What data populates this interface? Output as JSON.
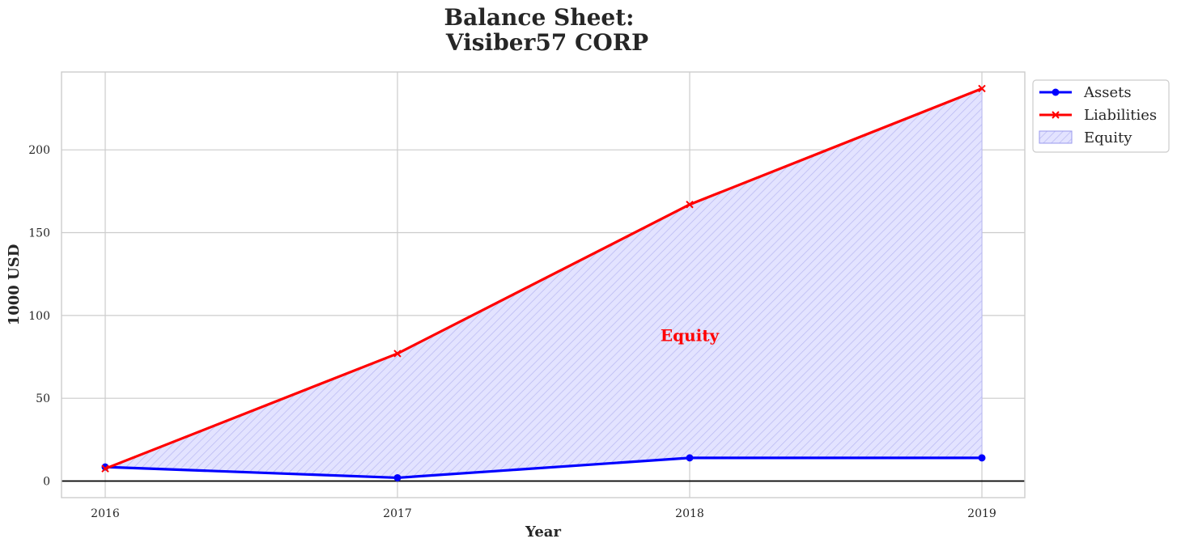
{
  "chart_data": {
    "type": "line",
    "title_line1": "Balance Sheet:",
    "title_line2": "Visiber57 CORP",
    "xlabel": "Year",
    "ylabel": "1000 USD",
    "x": [
      2016,
      2017,
      2018,
      2019
    ],
    "x_ticks": [
      "2016",
      "2017",
      "2018",
      "2019"
    ],
    "y_ticks": [
      "0",
      "50",
      "100",
      "150",
      "200"
    ],
    "ylim": [
      -10,
      247
    ],
    "grid": true,
    "legend_position": "outside-top-right",
    "series": [
      {
        "name": "Assets",
        "values": [
          8.5,
          2,
          14,
          14
        ],
        "color": "#0000ff",
        "marker": "circle"
      },
      {
        "name": "Liabilities",
        "values": [
          7.5,
          77,
          167,
          237
        ],
        "color": "#ff0000",
        "marker": "x"
      }
    ],
    "fill": {
      "name": "Equity",
      "between": [
        "Assets",
        "Liabilities"
      ],
      "color": "#ccccff",
      "hatch": "diagonal"
    },
    "annotation": {
      "text": "Equity",
      "x": 2018,
      "y": 88,
      "color": "#ff0000"
    }
  }
}
